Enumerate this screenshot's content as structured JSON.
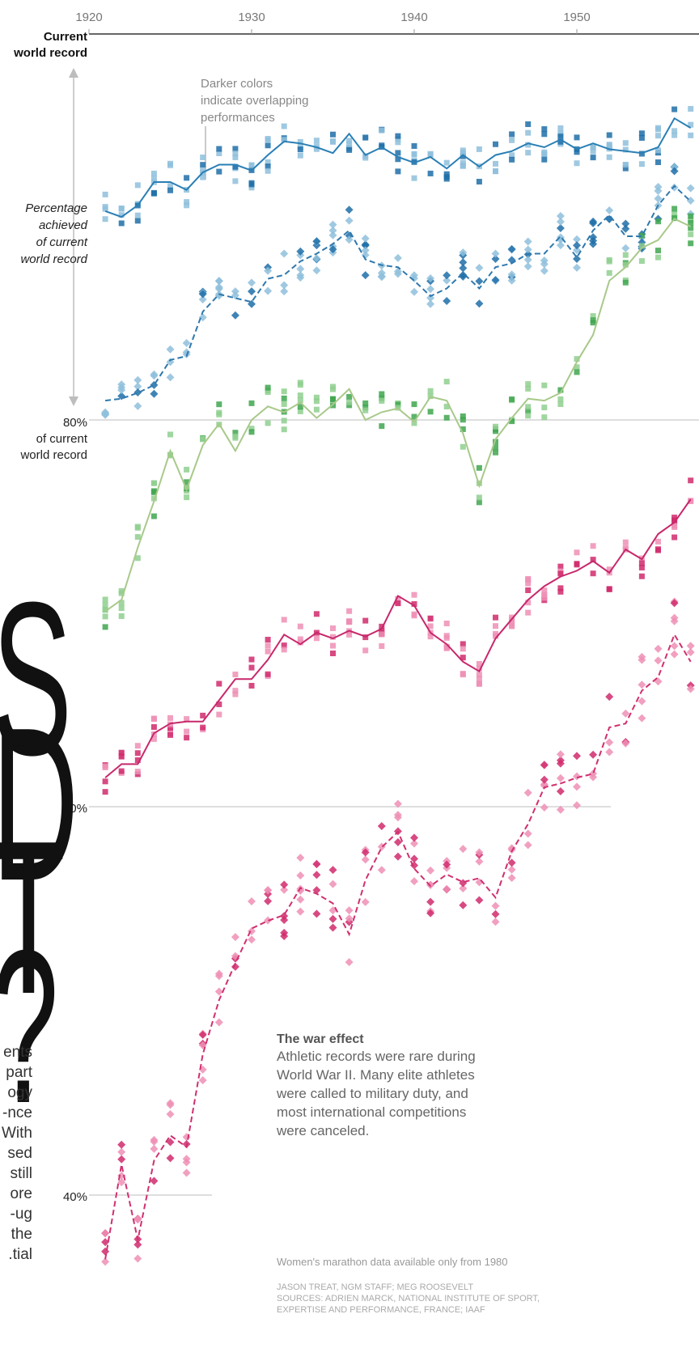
{
  "axis": {
    "years": [
      "1920",
      "1930",
      "1940",
      "1950"
    ],
    "current_label": "Current\nworld record",
    "pct_achieved_label": "Percentage\nachieved\nof current\nworld record",
    "pct80_label": "80%\nof current\nworld record",
    "pct60_label": "60%",
    "pct40_label": "40%"
  },
  "annotations": {
    "darker_colors": "Darker colors\nindicate overlapping\nperformances",
    "war_title": "The war effect",
    "war_body": "Athletic records were rare during World War II. Many elite athletes were called to military duty, and most international competitions were canceled.",
    "womens_marathon": "Women's marathon data available only from 1980",
    "credits_line1": "JASON TREAT, NGM STAFF; MEG ROOSEVELT",
    "credits_line2": "SOURCES: ADRIEN MARCK, NATIONAL INSTITUTE OF SPORT,",
    "credits_line3": "EXPERTISE AND PERFORMANCE, FRANCE; IAAF"
  },
  "headline_fragments": [
    "S",
    "D",
    "T",
    "?"
  ],
  "body_fragments": [
    "ents",
    "part",
    "ogy",
    "nce-",
    "With",
    "sed",
    "still",
    "ore",
    "ug-",
    "the",
    "tial."
  ],
  "colors": {
    "blue_solid": "#2a7fb5",
    "blue_dash": "#2f78ad",
    "green": "#a8c98a",
    "pink_solid": "#c7286c",
    "pink_dash": "#d0306f"
  },
  "chart_data": {
    "type": "line",
    "x": [
      1921,
      1922,
      1923,
      1924,
      1925,
      1926,
      1927,
      1928,
      1929,
      1930,
      1931,
      1932,
      1933,
      1934,
      1935,
      1936,
      1937,
      1938,
      1939,
      1940,
      1941,
      1942,
      1943,
      1944,
      1945,
      1946,
      1947,
      1948,
      1949,
      1950,
      1951,
      1952,
      1953,
      1954,
      1955,
      1956,
      1957
    ],
    "yunit": "percent of current world record",
    "ylim": [
      34,
      100
    ],
    "xlim": [
      1920,
      1957
    ],
    "series": [
      {
        "style": "solid",
        "color": "blue",
        "values": [
          90.8,
          90.5,
          91.1,
          92.3,
          92.3,
          91.9,
          92.8,
          93.2,
          93.2,
          92.9,
          93.7,
          94.4,
          94.3,
          94.1,
          93.8,
          94.8,
          93.7,
          94.1,
          93.6,
          93.3,
          93.6,
          93.0,
          93.7,
          93.1,
          93.7,
          93.9,
          94.3,
          94.1,
          94.5,
          94.0,
          94.3,
          94.0,
          93.9,
          93.8,
          94.1,
          95.6,
          95.1
        ]
      },
      {
        "style": "dashed",
        "color": "blue",
        "values": [
          81.0,
          81.1,
          81.4,
          81.8,
          83.1,
          83.3,
          85.6,
          86.5,
          86.3,
          86.1,
          87.3,
          87.5,
          88.2,
          88.6,
          89.1,
          89.8,
          88.3,
          88.0,
          87.9,
          87.2,
          86.4,
          86.8,
          87.6,
          86.8,
          87.9,
          88.1,
          88.6,
          88.6,
          89.5,
          88.4,
          89.8,
          90.6,
          89.5,
          89.5,
          91.1,
          92.1,
          91.3
        ]
      },
      {
        "style": "solid",
        "color": "green",
        "values": [
          70.1,
          70.7,
          73.4,
          75.8,
          78.4,
          76.4,
          78.7,
          79.8,
          78.4,
          80.0,
          80.7,
          80.4,
          80.9,
          80.1,
          80.8,
          81.6,
          80.0,
          80.4,
          80.6,
          79.9,
          81.2,
          81.0,
          79.3,
          76.6,
          79.0,
          80.1,
          81.1,
          81.0,
          81.4,
          83.0,
          84.4,
          87.2,
          87.9,
          88.9,
          89.3,
          90.4,
          90.0
        ]
      },
      {
        "style": "solid",
        "color": "pink",
        "values": [
          61.5,
          62.2,
          62.2,
          63.8,
          64.3,
          64.4,
          64.4,
          65.5,
          66.6,
          66.6,
          67.6,
          68.9,
          68.4,
          69.0,
          68.7,
          69.1,
          68.8,
          69.2,
          70.9,
          70.4,
          69.0,
          68.4,
          67.5,
          67.0,
          68.7,
          69.7,
          70.7,
          71.4,
          71.9,
          72.2,
          72.7,
          72.1,
          73.3,
          72.8,
          74.1,
          74.7,
          75.9
        ]
      },
      {
        "style": "dashed",
        "color": "pink",
        "values": [
          36.6,
          41.5,
          37.6,
          41.7,
          43.0,
          42.4,
          47.2,
          50.0,
          51.9,
          53.7,
          54.1,
          54.4,
          55.8,
          55.5,
          55.0,
          53.4,
          56.2,
          57.9,
          58.7,
          56.8,
          55.9,
          56.5,
          56.1,
          56.3,
          55.3,
          57.7,
          59.1,
          61.0,
          61.2,
          61.5,
          61.7,
          64.1,
          64.3,
          66.0,
          66.7,
          68.9,
          67.5
        ]
      }
    ]
  }
}
